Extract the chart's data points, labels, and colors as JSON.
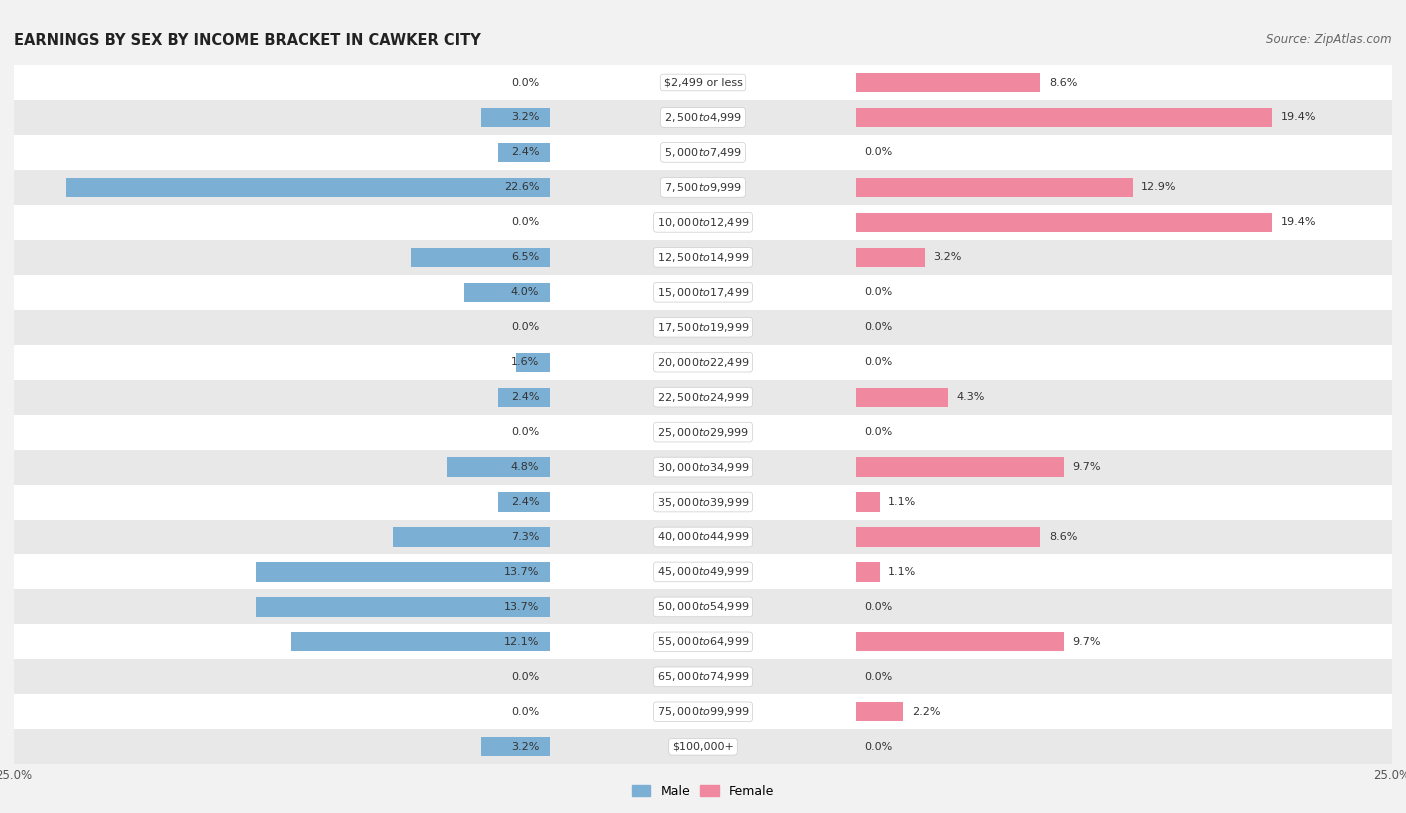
{
  "title": "EARNINGS BY SEX BY INCOME BRACKET IN CAWKER CITY",
  "source": "Source: ZipAtlas.com",
  "categories": [
    "$2,499 or less",
    "$2,500 to $4,999",
    "$5,000 to $7,499",
    "$7,500 to $9,999",
    "$10,000 to $12,499",
    "$12,500 to $14,999",
    "$15,000 to $17,499",
    "$17,500 to $19,999",
    "$20,000 to $22,499",
    "$22,500 to $24,999",
    "$25,000 to $29,999",
    "$30,000 to $34,999",
    "$35,000 to $39,999",
    "$40,000 to $44,999",
    "$45,000 to $49,999",
    "$50,000 to $54,999",
    "$55,000 to $64,999",
    "$65,000 to $74,999",
    "$75,000 to $99,999",
    "$100,000+"
  ],
  "male_values": [
    0.0,
    3.2,
    2.4,
    22.6,
    0.0,
    6.5,
    4.0,
    0.0,
    1.6,
    2.4,
    0.0,
    4.8,
    2.4,
    7.3,
    13.7,
    13.7,
    12.1,
    0.0,
    0.0,
    3.2
  ],
  "female_values": [
    8.6,
    19.4,
    0.0,
    12.9,
    19.4,
    3.2,
    0.0,
    0.0,
    0.0,
    4.3,
    0.0,
    9.7,
    1.1,
    8.6,
    1.1,
    0.0,
    9.7,
    0.0,
    2.2,
    0.0
  ],
  "male_color": "#7bafd4",
  "female_color": "#f089a0",
  "male_label": "Male",
  "female_label": "Female",
  "xlim": 25.0,
  "background_color": "#f2f2f2",
  "row_colors_odd": "#ffffff",
  "row_colors_even": "#e8e8e8",
  "title_fontsize": 10.5,
  "source_fontsize": 8.5,
  "label_fontsize": 8,
  "value_fontsize": 8,
  "tick_fontsize": 8.5,
  "bar_height": 0.55
}
